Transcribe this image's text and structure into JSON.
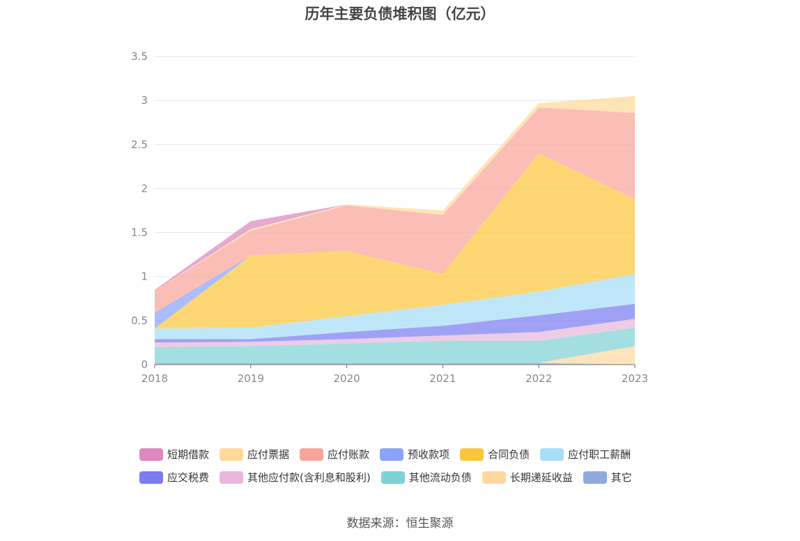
{
  "chart_data": {
    "type": "area",
    "stacked": true,
    "title": "历年主要负债堆积图（亿元）",
    "x": [
      "2018",
      "2019",
      "2020",
      "2021",
      "2022",
      "2023"
    ],
    "ylim": [
      0,
      3.5
    ],
    "yticks": [
      "0",
      "0.5",
      "1",
      "1.5",
      "2",
      "2.5",
      "3",
      "3.5"
    ],
    "grid": true,
    "legend_position": "bottom",
    "series": [
      {
        "name": "其它",
        "color": "#8faadc",
        "values": [
          0.02,
          0.02,
          0.02,
          0.02,
          0.02,
          0.0
        ]
      },
      {
        "name": "长期递延收益",
        "color": "#ffd8a0",
        "values": [
          0,
          0,
          0,
          0,
          0,
          0.21
        ]
      },
      {
        "name": "其他流动负债",
        "color": "#7fd3d6",
        "values": [
          0.18,
          0.19,
          0.22,
          0.25,
          0.25,
          0.21
        ]
      },
      {
        "name": "其他应付款(含利息和股利)",
        "color": "#e8b8dc",
        "values": [
          0.05,
          0.05,
          0.05,
          0.06,
          0.1,
          0.1
        ]
      },
      {
        "name": "应交税费",
        "color": "#7b7df0",
        "values": [
          0.04,
          0.03,
          0.08,
          0.11,
          0.19,
          0.17
        ]
      },
      {
        "name": "应付职工薪酬",
        "color": "#a8def7",
        "values": [
          0.12,
          0.13,
          0.18,
          0.24,
          0.27,
          0.34
        ]
      },
      {
        "name": "合同负债",
        "color": "#fcc73f",
        "values": [
          0,
          0.82,
          0.74,
          0.35,
          1.57,
          0.85
        ]
      },
      {
        "name": "预收款项",
        "color": "#8aa4fb",
        "values": [
          0.18,
          0,
          0,
          0,
          0,
          0
        ]
      },
      {
        "name": "应付账款",
        "color": "#f9a59a",
        "values": [
          0.25,
          0.28,
          0.52,
          0.67,
          0.52,
          0.98
        ]
      },
      {
        "name": "应付票据",
        "color": "#ffd99a",
        "values": [
          0,
          0.02,
          0.01,
          0.05,
          0.05,
          0.19
        ]
      },
      {
        "name": "短期借款",
        "color": "#dd88c0",
        "values": [
          0.01,
          0.09,
          0,
          0,
          0,
          0
        ]
      }
    ]
  },
  "legend_rows": [
    [
      {
        "label": "短期借款",
        "color": "#dd88c0"
      },
      {
        "label": "应付票据",
        "color": "#ffd99a"
      },
      {
        "label": "应付账款",
        "color": "#f9a59a"
      },
      {
        "label": "预收款项",
        "color": "#8aa4fb"
      },
      {
        "label": "合同负债",
        "color": "#fcc73f"
      },
      {
        "label": "应付职工薪酬",
        "color": "#a8def7"
      }
    ],
    [
      {
        "label": "应交税费",
        "color": "#7b7df0"
      },
      {
        "label": "其他应付款(含利息和股利)",
        "color": "#e8b8dc"
      },
      {
        "label": "其他流动负债",
        "color": "#7fd3d6"
      },
      {
        "label": "长期递延收益",
        "color": "#ffd8a0"
      },
      {
        "label": "其它",
        "color": "#8faadc"
      }
    ]
  ],
  "source": "数据来源：恒生聚源"
}
